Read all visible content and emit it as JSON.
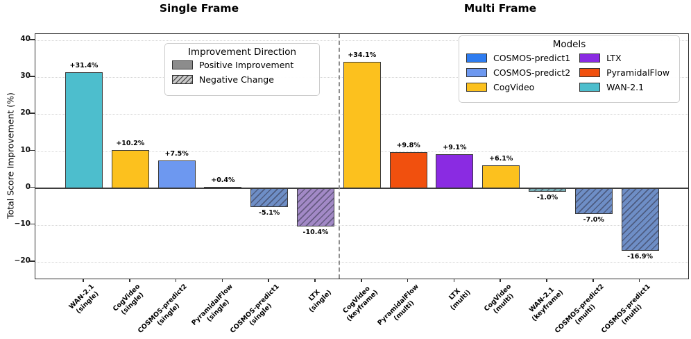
{
  "figure": {
    "titles": {
      "left": "Single Frame",
      "right": "Multi Frame"
    },
    "y_axis": {
      "label": "Total Score Improvement (%)",
      "ticks": [
        40,
        30,
        20,
        10,
        0,
        -10,
        -20
      ]
    }
  },
  "legend_direction": {
    "title": "Improvement Direction",
    "items": [
      {
        "label": "Positive Improvement",
        "style": "solid-gray"
      },
      {
        "label": "Negative Change",
        "style": "hatched-gray"
      }
    ]
  },
  "legend_models": {
    "title": "Models",
    "items": [
      {
        "label": "COSMOS-predict1",
        "color": "#2E7CF0"
      },
      {
        "label": "COSMOS-predict2",
        "color": "#6D98F0"
      },
      {
        "label": "CogVideo",
        "color": "#FCC11E"
      },
      {
        "label": "LTX",
        "color": "#8A2BE2"
      },
      {
        "label": "PyramidalFlow",
        "color": "#F1500E"
      },
      {
        "label": "WAN-2.1",
        "color": "#4DBECD"
      }
    ]
  },
  "chart_data": {
    "type": "bar",
    "title_left": "Single Frame",
    "title_right": "Multi Frame",
    "xlabel": "",
    "ylabel": "Total Score Improvement (%)",
    "ylim": [
      -24.5,
      41.7
    ],
    "yticks": [
      40,
      30,
      20,
      10,
      0,
      -10,
      -20
    ],
    "grid": "horizontal-dotted",
    "divider_after_index": 5,
    "categories": [
      "WAN-2.1\n(single)",
      "CogVideo\n(single)",
      "COSMOS-predict2\n(single)",
      "PyramidalFlow\n(single)",
      "COSMOS-predict1\n(single)",
      "LTX\n(single)",
      "CogVideo\n(keyframe)",
      "PyramidalFlow\n(multi)",
      "LTX\n(multi)",
      "CogVideo\n(multi)",
      "WAN-2.1\n(keyframe)",
      "COSMOS-predict2\n(multi)",
      "COSMOS-predict1\n(multi)"
    ],
    "values": [
      31.4,
      10.2,
      7.5,
      0.4,
      -5.1,
      -10.4,
      34.1,
      9.8,
      9.1,
      6.1,
      -1.0,
      -7.0,
      -16.9
    ],
    "bars": [
      {
        "model": "WAN-2.1",
        "variant": "single",
        "group": "single",
        "value": 31.4,
        "value_label": "+31.4%",
        "color": "#4DBECD",
        "hatched": false
      },
      {
        "model": "CogVideo",
        "variant": "single",
        "group": "single",
        "value": 10.2,
        "value_label": "+10.2%",
        "color": "#FCC11E",
        "hatched": false
      },
      {
        "model": "COSMOS-predict2",
        "variant": "single",
        "group": "single",
        "value": 7.5,
        "value_label": "+7.5%",
        "color": "#6D98F0",
        "hatched": false
      },
      {
        "model": "PyramidalFlow",
        "variant": "single",
        "group": "single",
        "value": 0.4,
        "value_label": "+0.4%",
        "color": "#F1500E",
        "hatched": false
      },
      {
        "model": "COSMOS-predict1",
        "variant": "single",
        "group": "single",
        "value": -5.1,
        "value_label": "-5.1%",
        "color": "#6E8EC6",
        "hatched": true
      },
      {
        "model": "LTX",
        "variant": "single",
        "group": "single",
        "value": -10.4,
        "value_label": "-10.4%",
        "color": "#A289C6",
        "hatched": true
      },
      {
        "model": "CogVideo",
        "variant": "keyframe",
        "group": "multi",
        "value": 34.1,
        "value_label": "+34.1%",
        "color": "#FCC11E",
        "hatched": false
      },
      {
        "model": "PyramidalFlow",
        "variant": "multi",
        "group": "multi",
        "value": 9.8,
        "value_label": "+9.8%",
        "color": "#F1500E",
        "hatched": false
      },
      {
        "model": "LTX",
        "variant": "multi",
        "group": "multi",
        "value": 9.1,
        "value_label": "+9.1%",
        "color": "#8A2BE2",
        "hatched": false
      },
      {
        "model": "CogVideo",
        "variant": "multi",
        "group": "multi",
        "value": 6.1,
        "value_label": "+6.1%",
        "color": "#FCC11E",
        "hatched": false
      },
      {
        "model": "WAN-2.1",
        "variant": "keyframe",
        "group": "multi",
        "value": -1.0,
        "value_label": "-1.0%",
        "color": "#7AAFB5",
        "hatched": true
      },
      {
        "model": "COSMOS-predict2",
        "variant": "multi",
        "group": "multi",
        "value": -7.0,
        "value_label": "-7.0%",
        "color": "#6E8EC6",
        "hatched": true
      },
      {
        "model": "COSMOS-predict1",
        "variant": "multi",
        "group": "multi",
        "value": -16.9,
        "value_label": "-16.9%",
        "color": "#6E8EC6",
        "hatched": true
      }
    ],
    "legend_position": {
      "direction": "upper-left-of-single",
      "models": "upper-right-of-multi"
    }
  }
}
